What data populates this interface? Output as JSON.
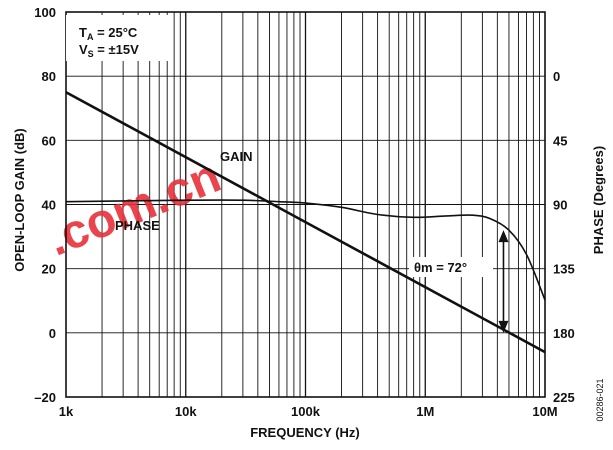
{
  "chart_data": {
    "type": "line",
    "title": "",
    "xlabel": "FREQUENCY (Hz)",
    "ylabel": "OPEN-LOOP GAIN (dB)",
    "y2label": "PHASE (Degrees)",
    "xscale": "log",
    "xlim": [
      1000,
      10000000
    ],
    "ylim": [
      -20,
      100
    ],
    "y2lim": [
      225,
      -45
    ],
    "x_ticks": [
      {
        "value": 1000,
        "label": "1k"
      },
      {
        "value": 10000,
        "label": "10k"
      },
      {
        "value": 100000,
        "label": "100k"
      },
      {
        "value": 1000000,
        "label": "1M"
      },
      {
        "value": 10000000,
        "label": "10M"
      }
    ],
    "y_ticks": [
      {
        "value": 100,
        "label": "100"
      },
      {
        "value": 80,
        "label": "80"
      },
      {
        "value": 60,
        "label": "60"
      },
      {
        "value": 40,
        "label": "40"
      },
      {
        "value": 20,
        "label": "20"
      },
      {
        "value": 0,
        "label": "0"
      },
      {
        "value": -20,
        "label": "–20"
      }
    ],
    "y2_ticks": [
      {
        "value": 0,
        "label": "0"
      },
      {
        "value": 45,
        "label": "45"
      },
      {
        "value": 90,
        "label": "90"
      },
      {
        "value": 135,
        "label": "135"
      },
      {
        "value": 180,
        "label": "180"
      },
      {
        "value": 225,
        "label": "225"
      }
    ],
    "grid": true,
    "series": [
      {
        "name": "GAIN",
        "axis": "left",
        "color": "#111111",
        "x": [
          1000,
          10000000
        ],
        "y": [
          75,
          -6
        ]
      },
      {
        "name": "PHASE",
        "axis": "right",
        "color": "#111111",
        "x": [
          1000,
          3000,
          10000,
          30000,
          60000,
          100000,
          200000,
          400000,
          800000,
          1500000,
          2500000,
          3500000,
          5000000,
          7000000,
          10000000
        ],
        "y": [
          88,
          87.5,
          87,
          87,
          88,
          89,
          92,
          97,
          99,
          98,
          97.5,
          100,
          108,
          125,
          157
        ]
      }
    ],
    "annotations": {
      "ta": "T",
      "ta_sub": "A",
      "ta_val": " = 25°C",
      "vs": "V",
      "vs_sub": "S",
      "vs_val": " = ±15V",
      "gain_label": "GAIN",
      "phase_label": "PHASE",
      "margin_label": "θm = 72°",
      "margin_x": 4500000,
      "margin_top_y2": 108,
      "margin_bottom_y2": 180
    },
    "figure_id": "00286-021",
    "watermark": ".com.cn",
    "watermark_color": "#e8303a"
  }
}
